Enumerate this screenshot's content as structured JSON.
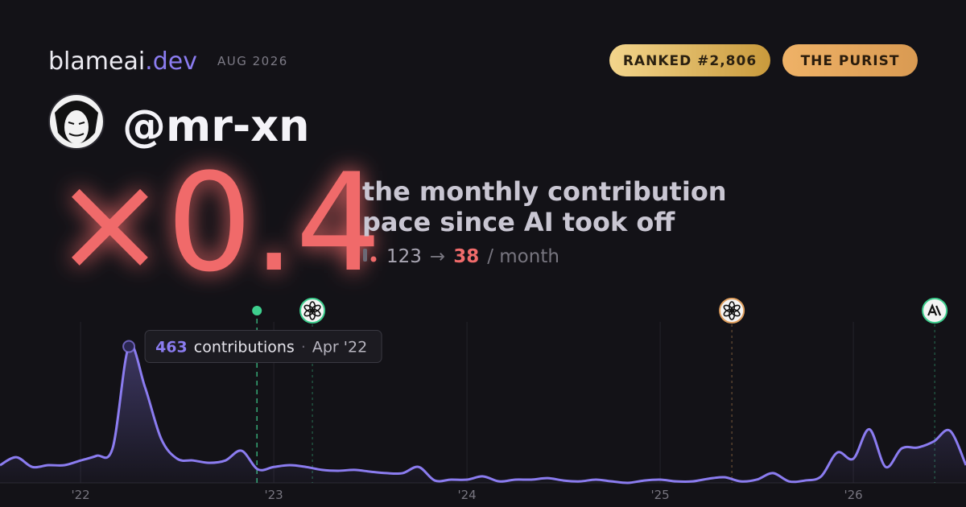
{
  "header": {
    "brand": "blameai",
    "brand_suffix": ".dev",
    "date": "AUG 2026",
    "rank": "RANKED #2,806",
    "badge": "THE PURIST"
  },
  "profile": {
    "handle": "@mr-xn"
  },
  "headline": {
    "multiplier": "×0.4",
    "caption_line1": "the monthly contribution",
    "caption_line2": "pace since AI took off",
    "before": "123",
    "arrow": "→",
    "after": "38",
    "unit": "/ month"
  },
  "tooltip": {
    "label": "contributions",
    "separator": "·",
    "date": "Apr '22"
  },
  "chart_data": {
    "type": "line",
    "x": [
      2021.583,
      2021.667,
      2021.75,
      2021.833,
      2021.917,
      2022,
      2022.083,
      2022.167,
      2022.25,
      2022.333,
      2022.417,
      2022.5,
      2022.583,
      2022.667,
      2022.75,
      2022.833,
      2022.917,
      2023,
      2023.083,
      2023.167,
      2023.25,
      2023.333,
      2023.417,
      2023.5,
      2023.583,
      2023.667,
      2023.75,
      2023.833,
      2023.917,
      2024,
      2024.083,
      2024.167,
      2024.25,
      2024.333,
      2024.417,
      2024.5,
      2024.583,
      2024.667,
      2024.75,
      2024.833,
      2024.917,
      2025,
      2025.083,
      2025.167,
      2025.25,
      2025.333,
      2025.417,
      2025.5,
      2025.583,
      2025.667,
      2025.75,
      2025.833,
      2025.917,
      2026,
      2026.083,
      2026.167,
      2026.25,
      2026.333,
      2026.417,
      2026.5,
      2026.583
    ],
    "series": [
      {
        "name": "contributions",
        "color": "#8b7cf0",
        "values": [
          60,
          87,
          54,
          60,
          60,
          76,
          92,
          120,
          463,
          326,
          150,
          82,
          76,
          68,
          76,
          109,
          46,
          54,
          60,
          54,
          44,
          41,
          44,
          38,
          33,
          33,
          54,
          8,
          11,
          11,
          22,
          5,
          11,
          11,
          16,
          8,
          5,
          11,
          5,
          0,
          8,
          11,
          5,
          5,
          14,
          19,
          5,
          11,
          33,
          5,
          8,
          22,
          103,
          82,
          182,
          54,
          117,
          120,
          141,
          177,
          60
        ]
      }
    ],
    "xlim": [
      2021.583,
      2026.583
    ],
    "ylim": [
      0,
      500
    ],
    "xticks": [
      {
        "value": 2022,
        "label": "'22"
      },
      {
        "value": 2023,
        "label": "'23"
      },
      {
        "value": 2024,
        "label": "'24"
      },
      {
        "value": 2025,
        "label": "'25"
      },
      {
        "value": 2026,
        "label": "'26"
      }
    ],
    "grid": true,
    "events": [
      {
        "x": 2022.913,
        "color": "#3ecf8e"
      },
      {
        "x": 2023.2,
        "color": "#3ecf8e"
      },
      {
        "x": 2025.371,
        "color": "#e0a060"
      },
      {
        "x": 2026.421,
        "color": "#3ecf8e"
      }
    ],
    "highlight_index": 8
  }
}
